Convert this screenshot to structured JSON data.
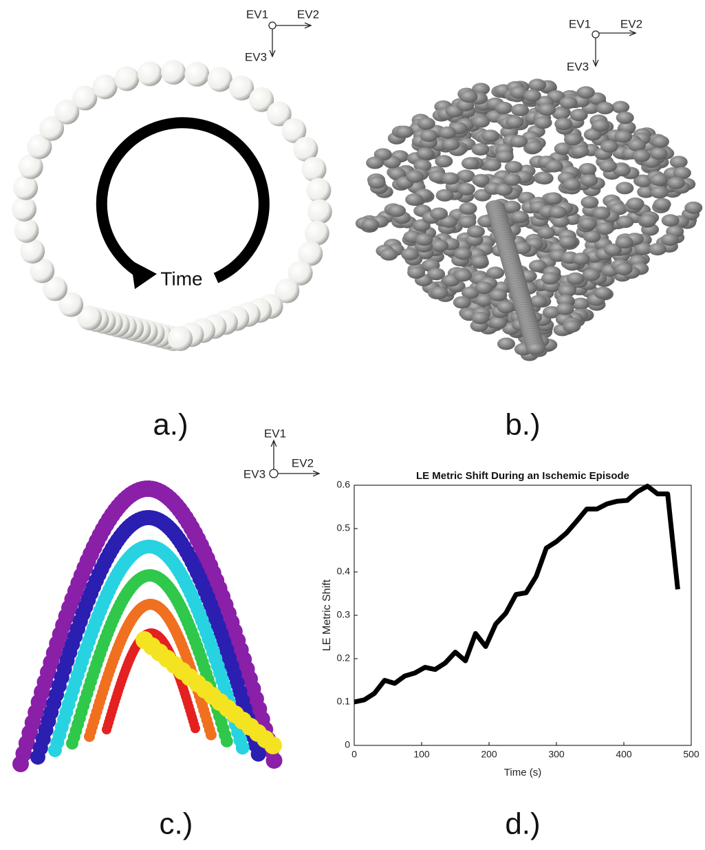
{
  "panels": [
    {
      "label": "a.)",
      "axes": [
        "EV1",
        "EV2",
        "EV3"
      ],
      "annotation": "Time"
    },
    {
      "label": "b.)",
      "axes": [
        "EV1",
        "EV2",
        "EV3"
      ]
    },
    {
      "label": "c.)",
      "axes": [
        "EV1",
        "EV2",
        "EV3"
      ]
    },
    {
      "label": "d.)"
    }
  ],
  "chart_data": {
    "type": "line",
    "title": "LE Metric Shift During an Ischemic Episode",
    "x_label": "Time (s)",
    "y_label": "LE Metric Shift",
    "x": [
      0,
      15,
      30,
      45,
      60,
      75,
      90,
      105,
      120,
      135,
      150,
      165,
      180,
      195,
      210,
      225,
      240,
      255,
      270,
      285,
      300,
      315,
      330,
      345,
      360,
      375,
      390,
      405,
      420,
      435,
      450,
      465,
      480
    ],
    "values": [
      0.1,
      0.105,
      0.12,
      0.15,
      0.143,
      0.16,
      0.167,
      0.18,
      0.175,
      0.19,
      0.215,
      0.195,
      0.258,
      0.228,
      0.28,
      0.305,
      0.348,
      0.352,
      0.39,
      0.455,
      0.47,
      0.49,
      0.517,
      0.545,
      0.545,
      0.557,
      0.563,
      0.565,
      0.585,
      0.598,
      0.58,
      0.58,
      0.36
    ],
    "color": "#000000",
    "xlim": [
      0,
      500
    ],
    "xticks": [
      0,
      100,
      200,
      300,
      400,
      500
    ],
    "ylim": [
      0,
      0.6
    ],
    "yticks": [
      0,
      0.1,
      0.2,
      0.3,
      0.4,
      0.5,
      0.6
    ]
  }
}
